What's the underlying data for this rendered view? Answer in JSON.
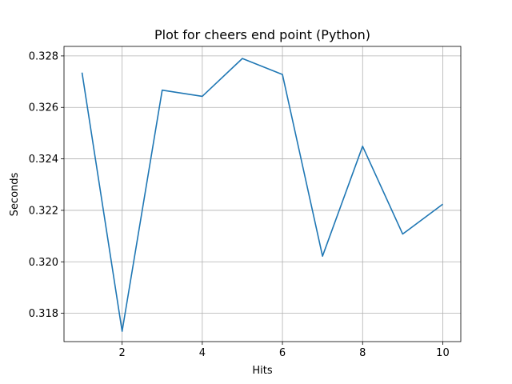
{
  "chart_data": {
    "type": "line",
    "title": "Plot for cheers end point (Python)",
    "xlabel": "Hits",
    "ylabel": "Seconds",
    "x": [
      1,
      2,
      3,
      4,
      5,
      6,
      7,
      8,
      9,
      10
    ],
    "series": [
      {
        "values": [
          0.32735,
          0.3173,
          0.32667,
          0.32643,
          0.3279,
          0.32728,
          0.32022,
          0.32449,
          0.32108,
          0.32224
        ]
      }
    ],
    "xlim": [
      0.55,
      10.45
    ],
    "ylim": [
      0.3169,
      0.32837
    ],
    "xticks": [
      2,
      4,
      6,
      8,
      10
    ],
    "xtick_labels": [
      "2",
      "4",
      "6",
      "8",
      "10"
    ],
    "yticks": [
      0.318,
      0.32,
      0.322,
      0.324,
      0.326,
      0.328
    ],
    "ytick_labels": [
      "0.318",
      "0.320",
      "0.322",
      "0.324",
      "0.326",
      "0.328"
    ],
    "grid": true,
    "colors": {
      "line": "#1f77b4",
      "grid": "#b0b0b0",
      "axes": "#000000"
    }
  }
}
